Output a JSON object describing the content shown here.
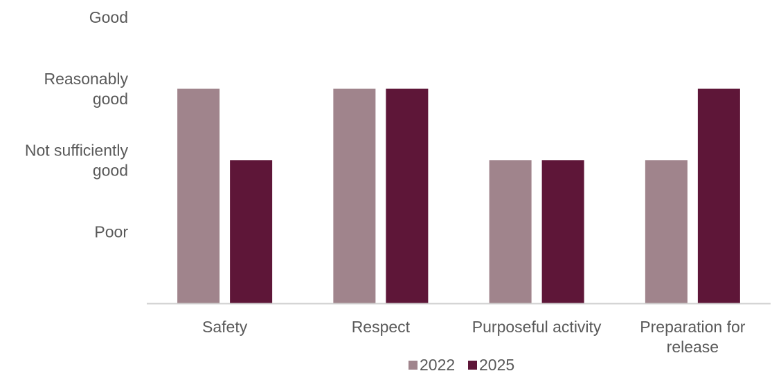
{
  "chart_data": {
    "type": "bar",
    "categories": [
      "Safety",
      "Respect",
      "Purposeful activity",
      "Preparation for release"
    ],
    "category_label_lines": [
      [
        "Safety"
      ],
      [
        "Respect"
      ],
      [
        "Purposeful activity"
      ],
      [
        "Preparation for",
        "release"
      ]
    ],
    "y_levels": [
      {
        "value": 1,
        "label_lines": [
          "Poor"
        ]
      },
      {
        "value": 2,
        "label_lines": [
          "Not sufficiently",
          "good"
        ]
      },
      {
        "value": 3,
        "label_lines": [
          "Reasonably",
          "good"
        ]
      },
      {
        "value": 4,
        "label_lines": [
          "Good"
        ]
      }
    ],
    "ylim": [
      0,
      4
    ],
    "series": [
      {
        "name": "2022",
        "color": "#a0848c",
        "values": [
          3,
          3,
          2,
          2
        ]
      },
      {
        "name": "2025",
        "color": "#5e1638",
        "values": [
          2,
          3,
          2,
          3
        ]
      }
    ],
    "grid": false,
    "legend_position": "bottom",
    "axis_color": "#d0d0d0",
    "text_color": "#595959"
  }
}
